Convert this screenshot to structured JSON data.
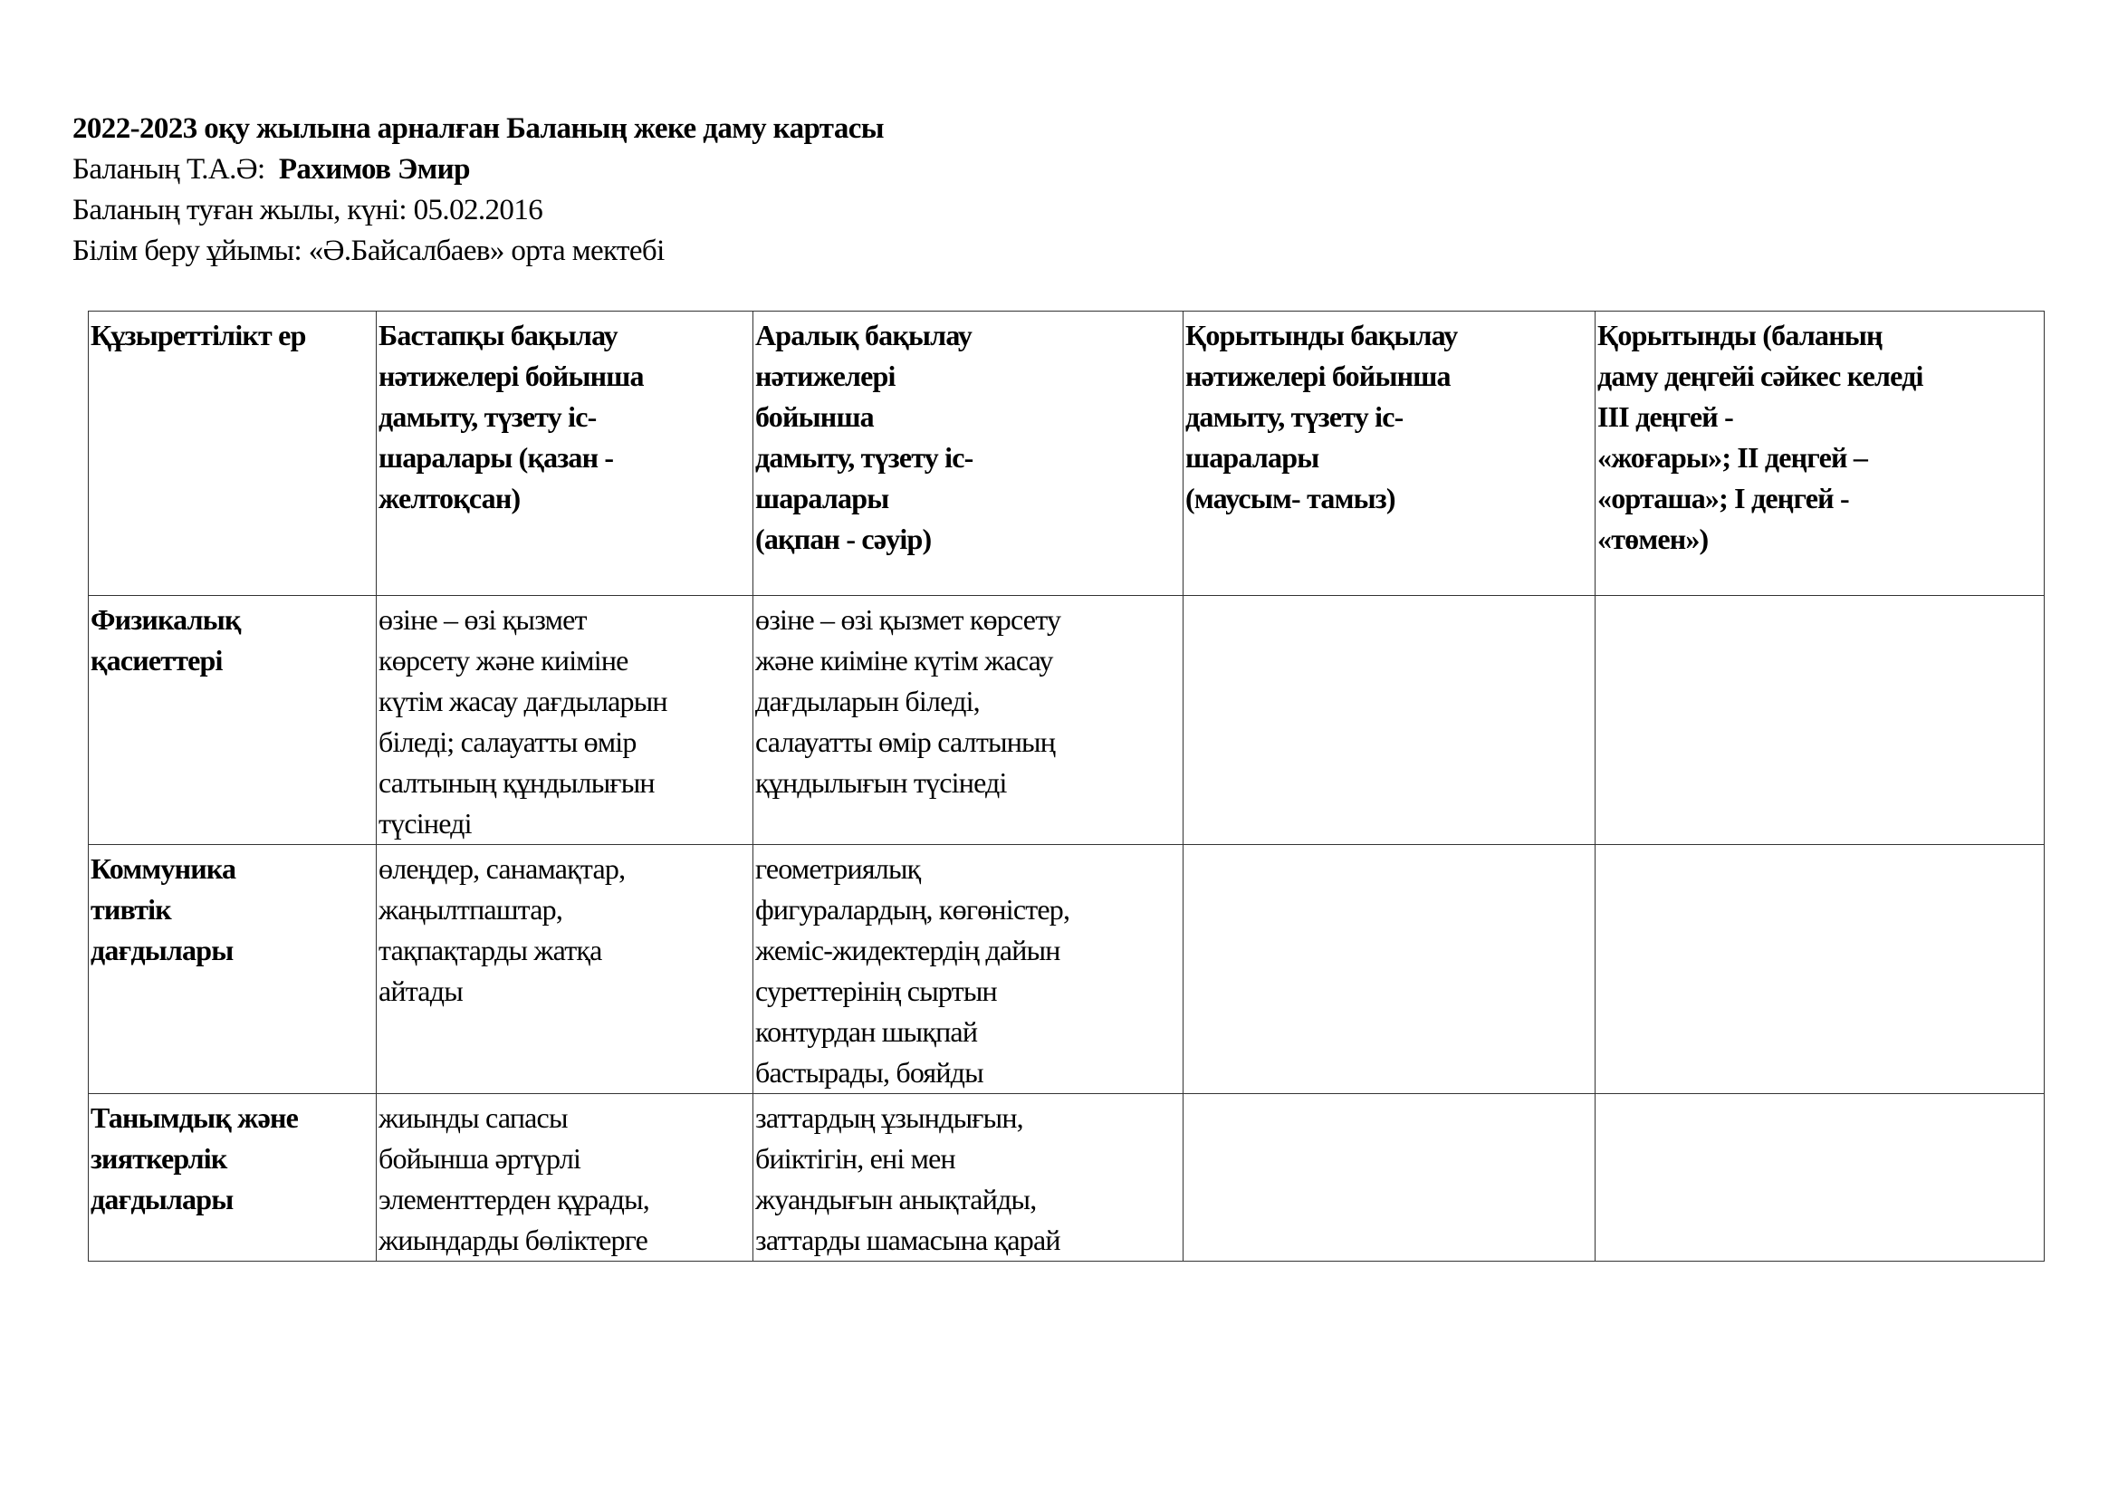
{
  "header": {
    "title": "2022-2023 оқу жылына арналған Баланың жеке даму картасы",
    "name_label": "Баланың Т.А.Ә:",
    "name_value": "Рахимов Эмир",
    "birth_label": "Баланың туған жылы, күні:",
    "birth_value": "05.02.2016",
    "org_label": "Білім беру ұйымы:",
    "org_value": "«Ә.Байсалбаев» орта мектебі"
  },
  "table": {
    "columns": [
      [
        "Құзыреттілікт ер"
      ],
      [
        "Бастапқы бақылау",
        "нәтижелері бойынша",
        "дамыту, түзету іс-",
        "шаралары (қазан -",
        "желтоқсан)"
      ],
      [
        "Аралық бақылау",
        "нәтижелері",
        "бойынша",
        "дамыту, түзету іс-",
        "шаралары",
        "(ақпан - сәуір)"
      ],
      [
        "Қорытынды бақылау",
        "нәтижелері бойынша",
        "дамыту, түзету іс-",
        "шаралары",
        "(маусым- тамыз)"
      ],
      [
        "Қорытынды (баланың",
        "даму деңгейі сәйкес келеді",
        "ІІІ деңгей -",
        "«жоғары»;  ІІ деңгей –",
        "«орташа»;   І деңгей -",
        "«төмен»)"
      ]
    ],
    "rows": [
      [
        [
          "Физикалық",
          "қасиеттері"
        ],
        [
          "өзіне – өзі қызмет",
          "көрсету және киіміне",
          "күтім жасау дағдыларын",
          "біледі; салауатты өмір",
          "салтының құндылығын",
          "түсінеді"
        ],
        [
          "өзіне – өзі қызмет көрсету",
          "және киіміне күтім жасау",
          "дағдыларын біледі,",
          "салауатты өмір салтының",
          "құндылығын түсінеді"
        ],
        [],
        []
      ],
      [
        [
          "Коммуника",
          "тивтік",
          "дағдылары"
        ],
        [
          "өлеңдер, санамақтар,",
          "жаңылтпаштар,",
          "тақпақтарды жатқа",
          "айтады"
        ],
        [
          "геометриялық",
          "фигуралардың, көгөністер,",
          "жеміс-жидектердің дайын",
          "суреттерінің сыртын",
          "контурдан шықпай",
          "бастырады, бояйды"
        ],
        [],
        []
      ],
      [
        [
          "Танымдық және",
          "зияткерлік",
          "дағдылары"
        ],
        [
          "жиынды сапасы",
          "бойынша әртүрлі",
          "элементтерден құрады,",
          "жиындарды бөліктерге"
        ],
        [
          "заттардың ұзындығын,",
          "биіктігін, ені мен",
          "жуандығын анықтайды,",
          "заттарды шамасына қарай"
        ],
        [],
        []
      ]
    ]
  }
}
